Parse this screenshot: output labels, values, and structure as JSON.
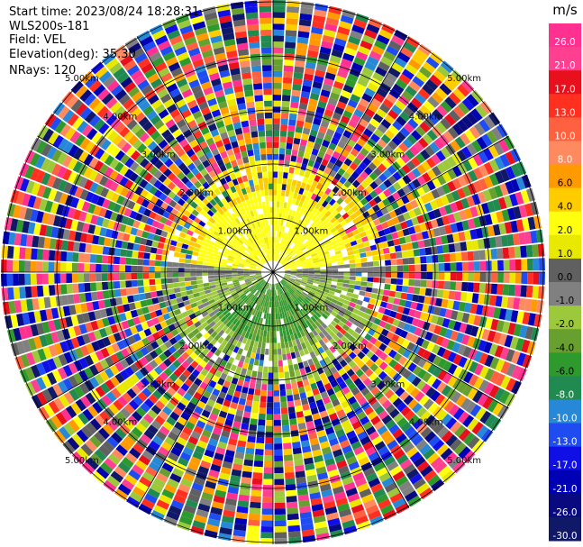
{
  "header": {
    "start_time": "Start time: 2023/08/24 18:28:31",
    "instrument": "WLS200s-181",
    "field": "Field: VEL",
    "elevation": "Elevation(deg): 35.30",
    "nrays": "NRays: 120"
  },
  "chart_data": {
    "type": "heatmap",
    "projection": "polar PPI",
    "field": "VEL",
    "nrays": 120,
    "range_ring_labels": [
      "1.00km",
      "2.00km",
      "3.00km",
      "4.00km",
      "5.00km"
    ],
    "grid": true,
    "colorbar": {
      "unit": "m/s",
      "placement": "right",
      "levels": [
        {
          "value": "-30.0",
          "color": "#101868"
        },
        {
          "value": "-26.0",
          "color": "#0a0a80"
        },
        {
          "value": "-21.0",
          "color": "#0000b4"
        },
        {
          "value": "-17.0",
          "color": "#1010e6"
        },
        {
          "value": "-13.0",
          "color": "#1e4cf0"
        },
        {
          "value": "-10.0",
          "color": "#2888d8"
        },
        {
          "value": "-8.0",
          "color": "#208a50"
        },
        {
          "value": "-6.0",
          "color": "#2e9a2e"
        },
        {
          "value": "-4.0",
          "color": "#68a030"
        },
        {
          "value": "-2.0",
          "color": "#9cc83c"
        },
        {
          "value": "-1.0",
          "color": "#808080"
        },
        {
          "value": "0.0",
          "color": "#606060"
        },
        {
          "value": "1.0",
          "color": "#e8e800"
        },
        {
          "value": "2.0",
          "color": "#ffff10"
        },
        {
          "value": "4.0",
          "color": "#ffcc00"
        },
        {
          "value": "6.0",
          "color": "#ff9a00"
        },
        {
          "value": "8.0",
          "color": "#ff8a60"
        },
        {
          "value": "10.0",
          "color": "#ff6040"
        },
        {
          "value": "13.0",
          "color": "#ff3020"
        },
        {
          "value": "17.0",
          "color": "#e8101c"
        },
        {
          "value": "21.0",
          "color": "#ff4090"
        },
        {
          "value": "26.0",
          "color": "#ff3090"
        }
      ]
    }
  }
}
